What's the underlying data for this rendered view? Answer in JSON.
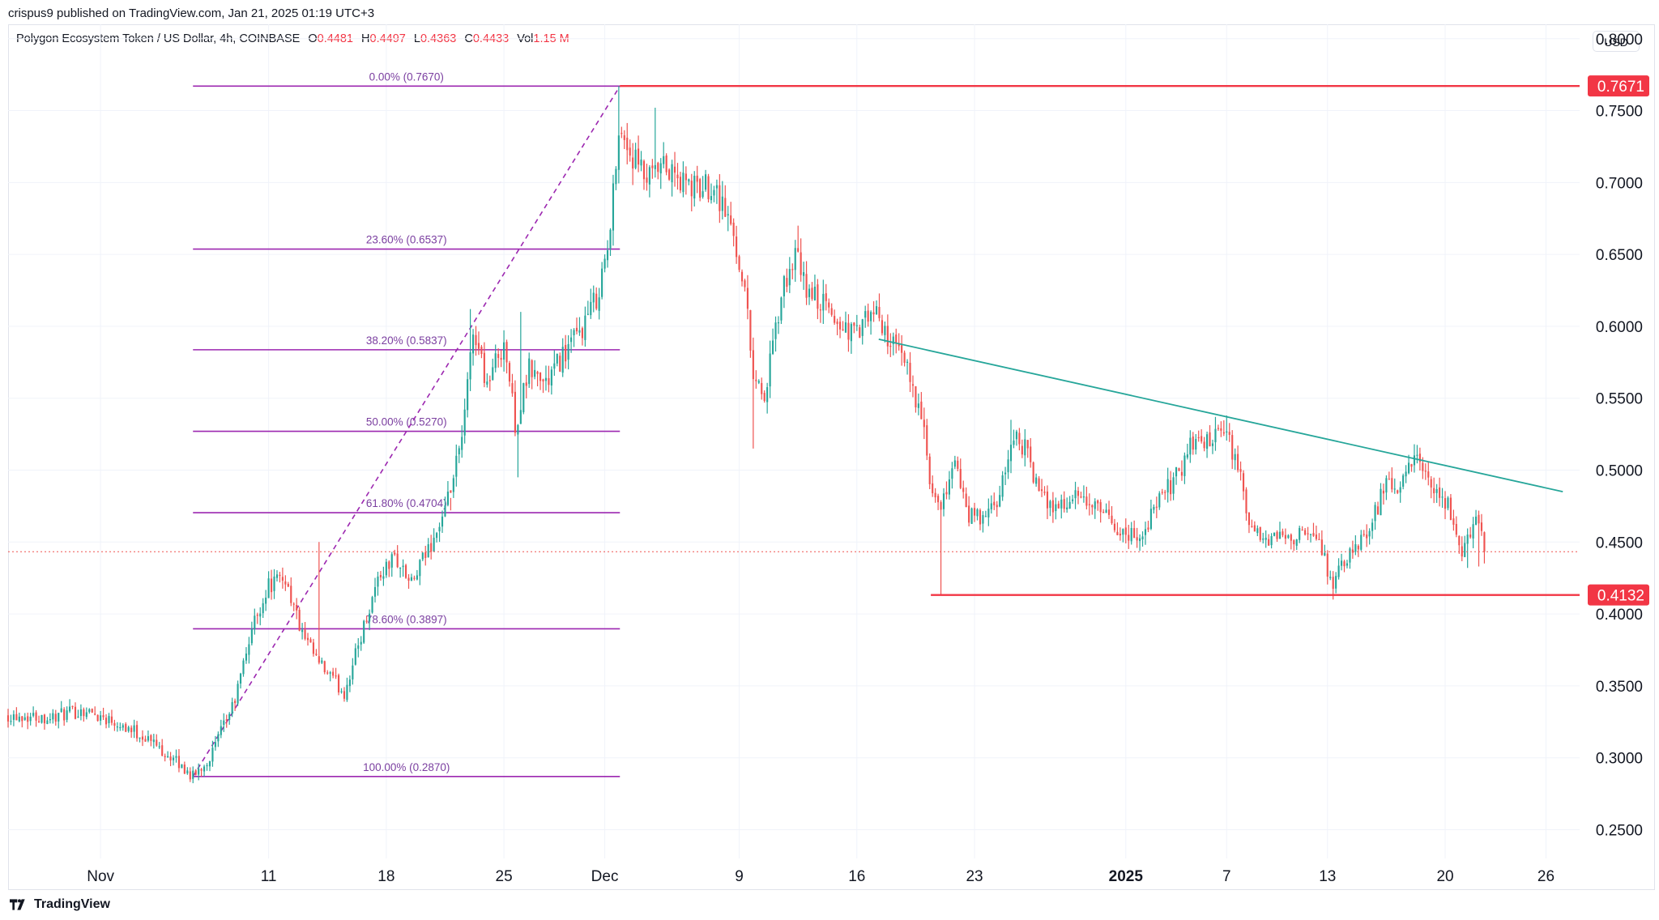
{
  "header": {
    "published": "crispus9 published on TradingView.com, Jan 21, 2025 01:19 UTC+3",
    "symbol": "Polygon Ecosystem Token / US Dollar, 4h, COINBASE",
    "o_label": "O",
    "o_value": "0.4481",
    "h_label": "H",
    "h_value": "0.4497",
    "l_label": "L",
    "l_value": "0.4363",
    "c_label": "C",
    "c_value": "0.4433",
    "vol_label": "Vol",
    "vol_value": "1.15 M",
    "currency": "USD"
  },
  "brand": {
    "name": "TradingView",
    "icon": "tradingview-logo-icon"
  },
  "colors": {
    "up": "#26a69a",
    "down": "#ef5350",
    "fib": "#9c27b0",
    "trend": "#26a69a",
    "level": "#f23645",
    "grid": "#f0f3fa"
  },
  "chart_data": {
    "type": "candlestick",
    "interval": "4h",
    "ylim": [
      0.23,
      0.81
    ],
    "y_ticks": [
      "0.8000",
      "0.7500",
      "0.7000",
      "0.6500",
      "0.6000",
      "0.5500",
      "0.5000",
      "0.4500",
      "0.4000",
      "0.3500",
      "0.3000",
      "0.2500"
    ],
    "x_ticks": [
      {
        "label": "Nov",
        "day": 1
      },
      {
        "label": "11",
        "day": 11
      },
      {
        "label": "18",
        "day": 18
      },
      {
        "label": "25",
        "day": 25
      },
      {
        "label": "Dec",
        "day": 31
      },
      {
        "label": "9",
        "day": 39
      },
      {
        "label": "16",
        "day": 46
      },
      {
        "label": "23",
        "day": 53
      },
      {
        "label": "2025",
        "day": 62,
        "bold": true
      },
      {
        "label": "7",
        "day": 68
      },
      {
        "label": "13",
        "day": 74
      },
      {
        "label": "20",
        "day": 81
      },
      {
        "label": "26",
        "day": 87
      }
    ],
    "x_range_days": [
      -4.5,
      89
    ],
    "price_path_days_close": [
      [
        -4.5,
        0.33
      ],
      [
        -2,
        0.328
      ],
      [
        0,
        0.333
      ],
      [
        2,
        0.325
      ],
      [
        4,
        0.312
      ],
      [
        6,
        0.292
      ],
      [
        6.5,
        0.287
      ],
      [
        7.5,
        0.3
      ],
      [
        9,
        0.34
      ],
      [
        10,
        0.39
      ],
      [
        11,
        0.42
      ],
      [
        12,
        0.425
      ],
      [
        13,
        0.385
      ],
      [
        14,
        0.365
      ],
      [
        15.5,
        0.345
      ],
      [
        16.5,
        0.385
      ],
      [
        17.5,
        0.425
      ],
      [
        18.5,
        0.44
      ],
      [
        19.5,
        0.42
      ],
      [
        20.5,
        0.445
      ],
      [
        21.5,
        0.47
      ],
      [
        22.5,
        0.52
      ],
      [
        23.2,
        0.6
      ],
      [
        24,
        0.56
      ],
      [
        25,
        0.59
      ],
      [
        25.7,
        0.53
      ],
      [
        26.5,
        0.57
      ],
      [
        27.5,
        0.56
      ],
      [
        28.5,
        0.58
      ],
      [
        29.5,
        0.595
      ],
      [
        30.5,
        0.62
      ],
      [
        31.3,
        0.66
      ],
      [
        31.8,
        0.74
      ],
      [
        32.5,
        0.72
      ],
      [
        33.5,
        0.7
      ],
      [
        34.5,
        0.71
      ],
      [
        35.5,
        0.7
      ],
      [
        36.5,
        0.695
      ],
      [
        37.5,
        0.7
      ],
      [
        38.5,
        0.67
      ],
      [
        39.3,
        0.63
      ],
      [
        39.8,
        0.57
      ],
      [
        40.5,
        0.55
      ],
      [
        41.5,
        0.62
      ],
      [
        42.3,
        0.65
      ],
      [
        43,
        0.625
      ],
      [
        44,
        0.615
      ],
      [
        45,
        0.6
      ],
      [
        46,
        0.595
      ],
      [
        47,
        0.61
      ],
      [
        48,
        0.59
      ],
      [
        49,
        0.57
      ],
      [
        49.8,
        0.54
      ],
      [
        50.5,
        0.48
      ],
      [
        51,
        0.47
      ],
      [
        51.8,
        0.51
      ],
      [
        52.5,
        0.47
      ],
      [
        53.5,
        0.465
      ],
      [
        54.5,
        0.48
      ],
      [
        55.3,
        0.525
      ],
      [
        56,
        0.515
      ],
      [
        57,
        0.48
      ],
      [
        58,
        0.475
      ],
      [
        59,
        0.48
      ],
      [
        60,
        0.475
      ],
      [
        61,
        0.465
      ],
      [
        62,
        0.455
      ],
      [
        63,
        0.455
      ],
      [
        64,
        0.48
      ],
      [
        65,
        0.495
      ],
      [
        66,
        0.52
      ],
      [
        67,
        0.52
      ],
      [
        68,
        0.525
      ],
      [
        68.7,
        0.5
      ],
      [
        69.5,
        0.455
      ],
      [
        70.5,
        0.45
      ],
      [
        71.5,
        0.455
      ],
      [
        72.5,
        0.455
      ],
      [
        73.5,
        0.45
      ],
      [
        74.3,
        0.42
      ],
      [
        75,
        0.435
      ],
      [
        76,
        0.45
      ],
      [
        76.8,
        0.47
      ],
      [
        77.5,
        0.49
      ],
      [
        78.3,
        0.485
      ],
      [
        79.2,
        0.51
      ],
      [
        79.8,
        0.495
      ],
      [
        80.5,
        0.48
      ],
      [
        81.2,
        0.475
      ],
      [
        82,
        0.44
      ],
      [
        82.8,
        0.47
      ],
      [
        83.4,
        0.443
      ]
    ],
    "spikes": [
      {
        "day": 7.0,
        "low": 0.287
      },
      {
        "day": 14.0,
        "high": 0.45
      },
      {
        "day": 21.8,
        "high": 0.472
      },
      {
        "day": 23.0,
        "high": 0.612
      },
      {
        "day": 26.0,
        "high": 0.61
      },
      {
        "day": 25.8,
        "low": 0.495
      },
      {
        "day": 31.9,
        "high": 0.767
      },
      {
        "day": 34.0,
        "high": 0.752
      },
      {
        "day": 39.8,
        "low": 0.515
      },
      {
        "day": 42.5,
        "high": 0.67
      },
      {
        "day": 51.0,
        "low": 0.413
      },
      {
        "day": 55.2,
        "high": 0.535
      },
      {
        "day": 68.0,
        "high": 0.538
      },
      {
        "day": 74.4,
        "low": 0.41
      },
      {
        "day": 79.2,
        "high": 0.518
      },
      {
        "day": 82.3,
        "low": 0.432
      },
      {
        "day": 83.0,
        "low": 0.433
      }
    ],
    "fibonacci": {
      "start_day": 6.5,
      "end_day": 31.9,
      "levels": [
        {
          "label": "0.00% (0.7670)",
          "price": 0.767
        },
        {
          "label": "23.60% (0.6537)",
          "price": 0.6537
        },
        {
          "label": "38.20% (0.5837)",
          "price": 0.5837
        },
        {
          "label": "50.00% (0.5270)",
          "price": 0.527
        },
        {
          "label": "61.80% (0.4704)",
          "price": 0.4704
        },
        {
          "label": "78.60% (0.3897)",
          "price": 0.3897
        },
        {
          "label": "100.00% (0.2870)",
          "price": 0.287
        }
      ],
      "diagonal": [
        [
          6.5,
          0.287
        ],
        [
          31.9,
          0.767
        ]
      ]
    },
    "horizontal_levels": [
      {
        "label": "0.7671",
        "price": 0.7671,
        "start_day": 31.9
      },
      {
        "label": "0.4132",
        "price": 0.4132,
        "start_day": 50.4
      }
    ],
    "trendline": [
      [
        47.3,
        0.591
      ],
      [
        88,
        0.485
      ]
    ],
    "last_price": {
      "price": 0.4433
    }
  }
}
